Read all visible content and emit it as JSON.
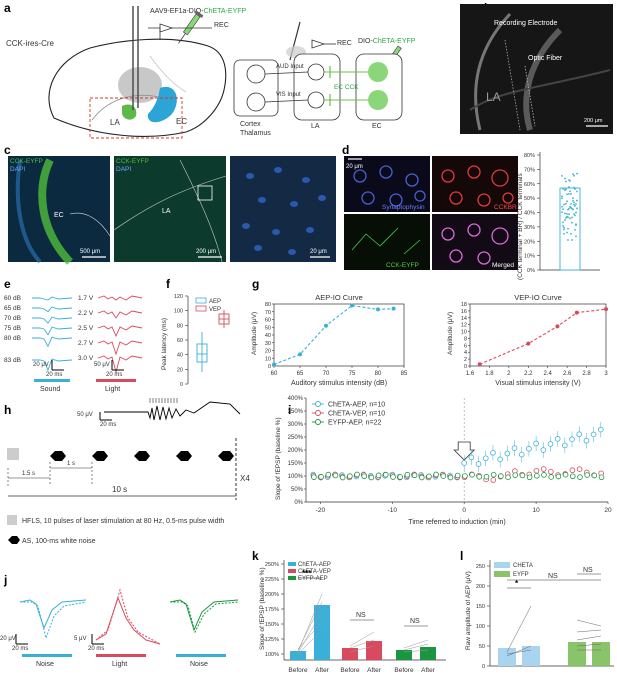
{
  "panels": {
    "a": {
      "letter": "a",
      "mouse_line": "CCK-ires-Cre",
      "virus_prefix": "AAV9-EF1a-DIO-",
      "virus_highlight": "ChETA-EYFP",
      "rec": "REC",
      "rec2": "REC",
      "virus2_prefix": "DIO-",
      "virus2_highlight": "ChETA-EYFP",
      "aud_input": "AUD Input",
      "vis_input": "VIS Input",
      "cortex": "Cortex",
      "thalamus": "Thalamus",
      "la": "LA",
      "ec": "EC",
      "la2": "LA",
      "ec2": "EC",
      "ec_cck": "EC CCK"
    },
    "b": {
      "letter": "b",
      "recording_electrode": "Recording Electrode",
      "optic_fiber": "Optic Fiber",
      "la": "LA",
      "scale": "200 μm"
    },
    "c": {
      "letter": "c",
      "cck_eyfp": "CCK-EYFP",
      "dapi": "DAPI",
      "cck_eyfp2": "CCK-EYFP",
      "dapi2": "DAPI",
      "ec": "EC",
      "la": "LA",
      "scale1": "500 μm",
      "scale2": "200 μm",
      "scale3": "20 μm"
    },
    "d": {
      "letter": "d",
      "scale": "20 μm",
      "synaptophysin": "Synaptophysin",
      "cck_br": "CCKBR",
      "cck_eyfp": "CCK-EYFP",
      "merged": "Merged",
      "bar_ylabel": "(CCK terminal + BR) / CCK terminals",
      "bar_yticks": [
        "0%",
        "10%",
        "20%",
        "30%",
        "40%",
        "50%",
        "60%",
        "70%",
        "80%"
      ]
    },
    "e": {
      "letter": "e",
      "sound_labels": [
        "60 dB",
        "65 dB",
        "70 dB",
        "75 dB",
        "80 dB",
        "83 dB"
      ],
      "light_labels": [
        "1.7 V",
        "2.2 V",
        "2.5 V",
        "2.7 V",
        "3.0 V"
      ],
      "scale1_v": "20 μV",
      "scale1_t": "20 ms",
      "scale2_v": "50 μV",
      "scale2_t": "20 ms",
      "sound": "Sound",
      "light": "Light"
    },
    "f": {
      "letter": "f",
      "legend": [
        "AEP",
        "VEP"
      ],
      "ylabel": "Peak latency (ms)",
      "yticks": [
        "0",
        "20",
        "40",
        "60",
        "80",
        "100",
        "120"
      ]
    },
    "g": {
      "letter": "g"
    },
    "h": {
      "letter": "h",
      "scale_v": "50 μV",
      "scale_t": "20 ms",
      "t1": "1.5 s",
      "t2": "1 s",
      "total": "10 s",
      "x4": "X4",
      "legend_hfls": "HFLS, 10 pulses of laser stimulation at 80 Hz, 0.5-ms pulse width",
      "legend_as": "AS, 100-ms white noise"
    },
    "i": {
      "letter": "i"
    },
    "j": {
      "letter": "j",
      "s1v": "20 μV",
      "s1t": "20 ms",
      "s2v": "5 μV",
      "s2t": "20 ms",
      "noise": "Noise",
      "light": "Light",
      "noise2": "Noise"
    },
    "k": {
      "letter": "k",
      "ylabel": "Slope of fEPSP (baseline %)",
      "yticks": [
        "100%",
        "125%",
        "150%",
        "175%",
        "200%",
        "225%",
        "250%"
      ],
      "legend": [
        "ChETA-AEP",
        "ChETA-VEP",
        "EYFP-AEP"
      ],
      "xlabels": [
        "Before",
        "After",
        "Before",
        "After",
        "Before",
        "After"
      ],
      "sig": [
        "***",
        "NS",
        "NS"
      ]
    },
    "l": {
      "letter": "l",
      "ylabel": "Raw amplitude of AEP (μV)",
      "yticks": [
        "0",
        "50",
        "100",
        "150",
        "200",
        "250"
      ],
      "legend": [
        "CHETA",
        "EYFP"
      ],
      "sig": [
        "*",
        "NS",
        "NS"
      ]
    }
  },
  "chart_data": [
    {
      "type": "line",
      "title": "AEP-IO Curve",
      "xlabel": "Auditory stimulus intensity (dB)",
      "ylabel": "Amplitude (μV)",
      "xlim": [
        60,
        85
      ],
      "ylim": [
        0,
        80
      ],
      "xticks": [
        60,
        65,
        70,
        75,
        80,
        85
      ],
      "yticks": [
        0,
        10,
        20,
        30,
        40,
        50,
        60,
        70,
        80
      ],
      "x": [
        60,
        65,
        70,
        75,
        80,
        83
      ],
      "y": [
        2,
        15,
        52,
        78,
        73,
        74
      ],
      "color": "#3ab0d8"
    },
    {
      "type": "line",
      "title": "VEP-IO Curve",
      "xlabel": "Visual stimulus intensity (V)",
      "ylabel": "Amplitude (μV)",
      "xlim": [
        1.6,
        3.0
      ],
      "ylim": [
        0,
        18
      ],
      "xticks": [
        1.6,
        1.8,
        2.0,
        2.2,
        2.4,
        2.6,
        2.8,
        3.0
      ],
      "yticks": [
        0,
        2,
        4,
        6,
        8,
        10,
        12,
        14,
        16,
        18
      ],
      "x": [
        1.7,
        2.2,
        2.5,
        2.7,
        3.0
      ],
      "y": [
        0.5,
        6.5,
        11.5,
        15.5,
        16.5
      ],
      "color": "#d94a5e"
    },
    {
      "type": "scatter",
      "xlabel": "Time referred to induction (min)",
      "ylabel": "Slope of fEPSP (baseline %)",
      "xlim": [
        -22,
        20
      ],
      "ylim": [
        0,
        400
      ],
      "xticks": [
        -20,
        -10,
        0,
        10,
        20
      ],
      "yticks": [
        0,
        50,
        100,
        150,
        200,
        250,
        300,
        350,
        400
      ],
      "series": [
        {
          "name": "ChETA-AEP, n=10",
          "color": "#3ab0d8"
        },
        {
          "name": "ChETA-VEP, n=10",
          "color": "#d94a5e"
        },
        {
          "name": "EYFP-AEP, n=22",
          "color": "#1a9641"
        }
      ]
    }
  ],
  "colors": {
    "cyan": "#3ab0d8",
    "red": "#d94a5e",
    "green": "#1a9641",
    "eyfp": "#66cc44"
  }
}
